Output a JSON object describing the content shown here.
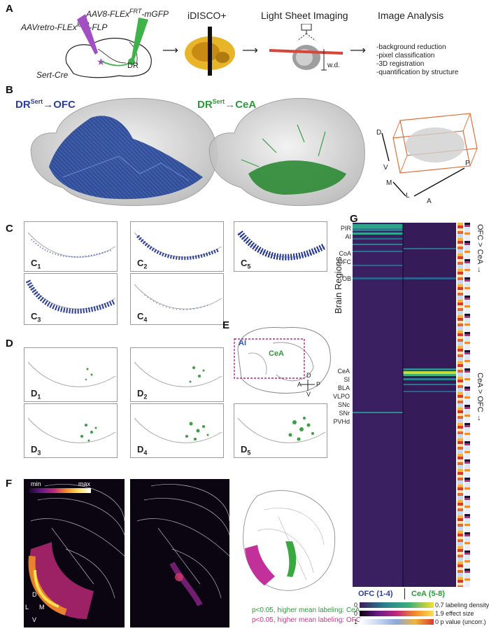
{
  "panelA": {
    "letter": "A",
    "virus_left": "AAVretro-FLEx",
    "virus_left_sup": "loxP",
    "virus_left_tail": "-FLP",
    "virus_right": "AAV8-FLEx",
    "virus_right_sup": "FRT",
    "virus_right_tail": "-mGFP",
    "mouse_line": "Sert-Cre",
    "dr_label": "DR",
    "step_idisco": "iDISCO+",
    "step_lightsheet": "Light Sheet Imaging",
    "step_analysis": "Image Analysis",
    "wd_label": "w.d.",
    "analysis_steps": [
      "-background reduction",
      "-pixel classification",
      "-3D registration",
      "-quantification by structure"
    ]
  },
  "panelB": {
    "letter": "B",
    "label_ofc_main": "DR",
    "label_ofc_sup": "Sert",
    "label_ofc_tail": "→OFC",
    "label_cea_main": "DR",
    "label_cea_sup": "Sert",
    "label_cea_tail": "→CeA",
    "axes": {
      "d": "D",
      "v": "V",
      "m": "M",
      "l": "L",
      "a": "A",
      "p": "P"
    }
  },
  "panelC": {
    "letter": "C",
    "subs": [
      "C",
      "C",
      "C",
      "C",
      "C"
    ],
    "nums": [
      "1",
      "2",
      "5",
      "3",
      "4"
    ]
  },
  "panelD": {
    "letter": "D",
    "subs": [
      "D",
      "D",
      "D",
      "D",
      "D"
    ],
    "nums": [
      "1",
      "2",
      "3",
      "4",
      "5"
    ]
  },
  "panelE": {
    "letter": "E",
    "ai": "AI",
    "cea": "CeA",
    "d": "D",
    "v": "V",
    "a": "A",
    "p": "P"
  },
  "panelF": {
    "letter": "F",
    "min": "min",
    "max": "max",
    "d": "D",
    "v": "V",
    "l": "L",
    "m": "M",
    "legend_cea": "p<0.05, higher mean labeling: CeA",
    "legend_ofc": "p<0.05, higher mean labeling: OFC"
  },
  "panelG": {
    "letter": "G",
    "ylabel": "Brain Regions",
    "top_labels": [
      "PIR",
      "AI",
      "CoA",
      "OFC",
      "OB"
    ],
    "mid_labels": [
      "CeA",
      "SI",
      "BLA",
      "VLPO",
      "SNc",
      "SNr",
      "PVHd"
    ],
    "right_top": "OFC > CeA →",
    "right_bottom": "CeA > OFC →",
    "x_ofc": "OFC (1-4)",
    "x_cea": "CeA (5-8)",
    "scale1_min": "0",
    "scale1_max": "0.7",
    "scale1_label": "labeling density (a.u.)",
    "scale2_min": "0",
    "scale2_max": "1.9",
    "scale2_label": "effect size",
    "scale3_min": "1",
    "scale3_max": "0",
    "scale3_label": "p value (uncorr.)"
  },
  "colors": {
    "ofc_blue": "#1f3f8f",
    "cea_green": "#2c9a3a",
    "magenta": "#c2309a",
    "frame_orange": "#e0703a"
  }
}
